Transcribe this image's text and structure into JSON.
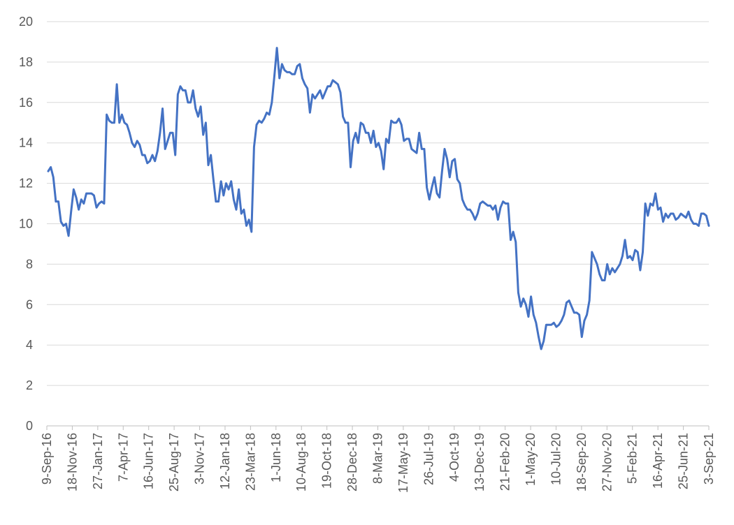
{
  "chart_data": {
    "type": "line",
    "title": "",
    "xlabel": "",
    "ylabel": "",
    "ylim": [
      0,
      20
    ],
    "yticks": [
      0,
      2,
      4,
      6,
      8,
      10,
      12,
      14,
      16,
      18,
      20
    ],
    "grid": true,
    "legend": "none",
    "color": "#4472c4",
    "xtick_labels": [
      "9-Sep-16",
      "18-Nov-16",
      "27-Jan-17",
      "7-Apr-17",
      "16-Jun-17",
      "25-Aug-17",
      "3-Nov-17",
      "12-Jan-18",
      "23-Mar-18",
      "1-Jun-18",
      "10-Aug-18",
      "19-Oct-18",
      "28-Dec-18",
      "8-Mar-19",
      "17-May-19",
      "26-Jul-19",
      "4-Oct-19",
      "13-Dec-19",
      "21-Feb-20",
      "1-May-20",
      "10-Jul-20",
      "18-Sep-20",
      "27-Nov-20",
      "5-Feb-21",
      "16-Apr-21",
      "25-Jun-21",
      "3-Sep-21"
    ],
    "values": [
      12.6,
      12.8,
      12.3,
      11.1,
      11.1,
      10.1,
      9.9,
      10.0,
      9.4,
      10.6,
      11.7,
      11.3,
      10.7,
      11.2,
      11.0,
      11.5,
      11.5,
      11.5,
      11.4,
      10.8,
      11.0,
      11.1,
      11.0,
      15.4,
      15.1,
      15.0,
      15.0,
      16.9,
      15.0,
      15.4,
      15.0,
      14.9,
      14.5,
      14.0,
      13.8,
      14.1,
      13.9,
      13.4,
      13.4,
      13.0,
      13.1,
      13.4,
      13.1,
      13.6,
      14.5,
      15.7,
      13.7,
      14.1,
      14.5,
      14.5,
      13.4,
      16.4,
      16.8,
      16.6,
      16.6,
      16.0,
      16.0,
      16.6,
      15.7,
      15.3,
      15.8,
      14.4,
      15.0,
      12.9,
      13.4,
      12.2,
      11.1,
      11.1,
      12.1,
      11.4,
      12.0,
      11.7,
      12.1,
      11.2,
      10.7,
      11.7,
      10.5,
      10.7,
      9.9,
      10.2,
      9.6,
      13.8,
      14.9,
      15.1,
      15.0,
      15.2,
      15.5,
      15.4,
      16.0,
      17.3,
      18.7,
      17.2,
      17.9,
      17.6,
      17.5,
      17.5,
      17.4,
      17.4,
      17.8,
      17.9,
      17.2,
      16.9,
      16.7,
      15.5,
      16.4,
      16.2,
      16.4,
      16.6,
      16.2,
      16.5,
      16.8,
      16.8,
      17.1,
      17.0,
      16.9,
      16.5,
      15.3,
      15.0,
      15.0,
      12.8,
      14.1,
      14.5,
      14.0,
      15.0,
      14.9,
      14.5,
      14.5,
      14.0,
      14.6,
      13.8,
      14.0,
      13.6,
      12.7,
      14.2,
      14.0,
      15.1,
      15.0,
      15.0,
      15.2,
      14.9,
      14.1,
      14.2,
      14.2,
      13.7,
      13.6,
      13.5,
      14.5,
      13.7,
      13.7,
      11.8,
      11.2,
      11.8,
      12.3,
      11.5,
      11.3,
      12.6,
      13.7,
      13.2,
      12.3,
      13.1,
      13.2,
      12.2,
      12.0,
      11.2,
      10.9,
      10.7,
      10.7,
      10.5,
      10.2,
      10.5,
      11.0,
      11.1,
      11.0,
      10.9,
      10.9,
      10.7,
      10.9,
      10.2,
      10.8,
      11.1,
      11.0,
      11.0,
      9.2,
      9.6,
      9.1,
      6.6,
      5.9,
      6.3,
      6.0,
      5.4,
      6.4,
      5.5,
      5.1,
      4.4,
      3.8,
      4.2,
      5.0,
      5.0,
      5.0,
      5.1,
      4.9,
      5.0,
      5.2,
      5.5,
      6.1,
      6.2,
      5.9,
      5.6,
      5.6,
      5.5,
      4.4,
      5.2,
      5.5,
      6.2,
      8.6,
      8.3,
      8.0,
      7.5,
      7.2,
      7.2,
      8.0,
      7.5,
      7.8,
      7.6,
      7.8,
      8.0,
      8.4,
      9.2,
      8.3,
      8.4,
      8.2,
      8.7,
      8.6,
      7.7,
      8.6,
      11.0,
      10.4,
      11.0,
      10.9,
      11.5,
      10.7,
      10.8,
      10.1,
      10.5,
      10.3,
      10.5,
      10.5,
      10.2,
      10.3,
      10.5,
      10.4,
      10.3,
      10.6,
      10.2,
      10.0,
      10.0,
      9.9,
      10.5,
      10.5,
      10.4,
      9.9
    ]
  }
}
